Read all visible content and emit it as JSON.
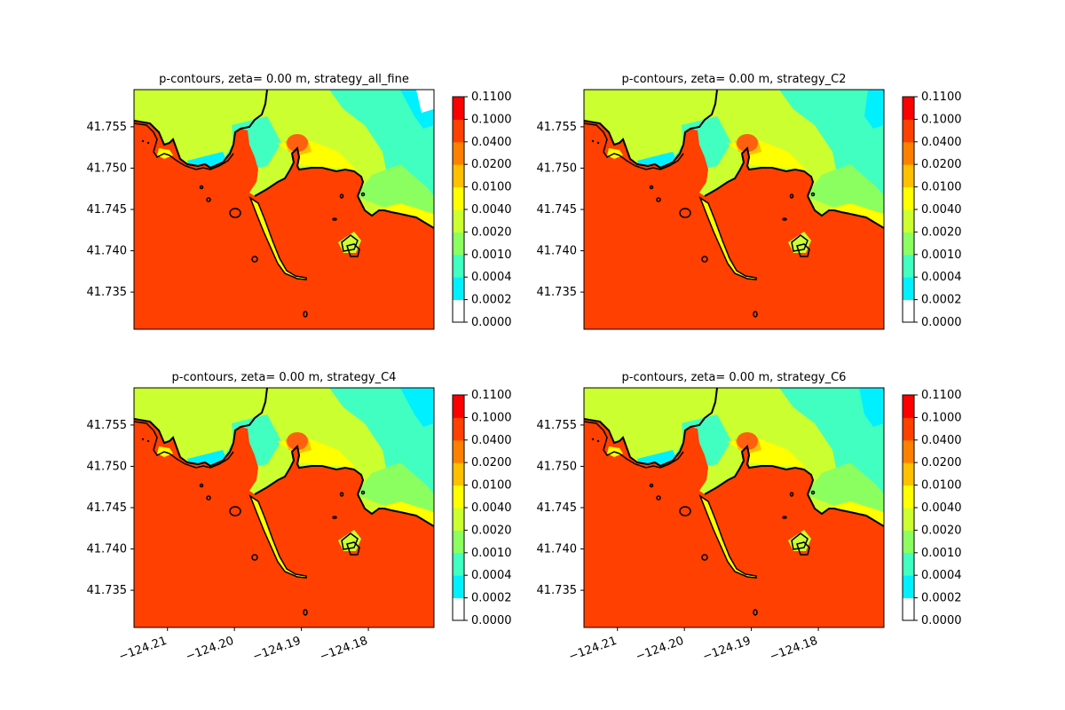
{
  "chart_data": {
    "type": "heatmap",
    "panels": [
      {
        "title": "p-contours, zeta= 0.00 m, strategy_all_fine",
        "variant": "all_fine"
      },
      {
        "title": "p-contours, zeta= 0.00 m, strategy_C2",
        "variant": "C2"
      },
      {
        "title": "p-contours, zeta= 0.00 m, strategy_C4",
        "variant": "C4"
      },
      {
        "title": "p-contours, zeta= 0.00 m, strategy_C6",
        "variant": "C6"
      }
    ],
    "x_ticks": [
      "−124.21",
      "−124.20",
      "−124.19",
      "−124.18"
    ],
    "x_tick_values": [
      -124.21,
      -124.2,
      -124.19,
      -124.18
    ],
    "xlim": [
      -124.215,
      -124.1702
    ],
    "y_ticks": [
      "41.755",
      "41.750",
      "41.745",
      "41.740",
      "41.735"
    ],
    "y_tick_values": [
      41.755,
      41.75,
      41.745,
      41.74,
      41.735
    ],
    "ylim": [
      41.7305,
      41.7595
    ],
    "x_ticks_shown_on": "bottom row only",
    "colorbar": {
      "levels": [
        "0.0000",
        "0.0002",
        "0.0004",
        "0.0010",
        "0.0020",
        "0.0040",
        "0.0100",
        "0.0200",
        "0.0400",
        "0.1000",
        "0.1100"
      ],
      "colors": [
        "#ffffff",
        "#00f0ff",
        "#40ffc0",
        "#8cff60",
        "#ccff30",
        "#ffff00",
        "#ffc000",
        "#ff8000",
        "#ff4000",
        "#ff0000"
      ]
    }
  },
  "colors": {
    "land": "#ffffff",
    "ocean_high": "#ff4000",
    "peak": "#ff6010",
    "shore": "#000000"
  }
}
